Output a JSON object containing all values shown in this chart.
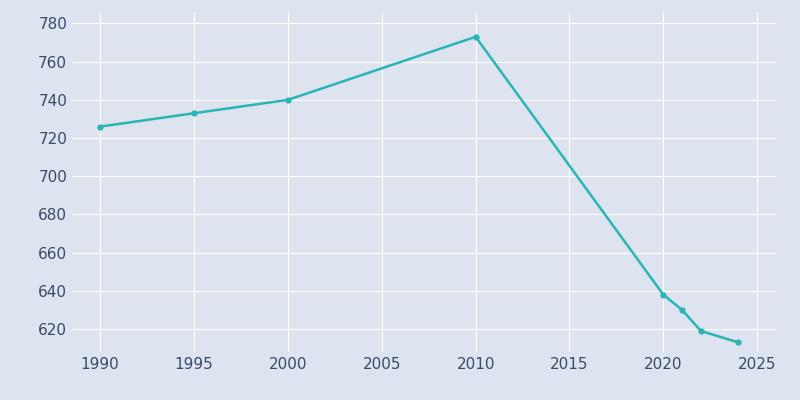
{
  "years": [
    1990,
    1995,
    2000,
    2010,
    2020,
    2021,
    2022,
    2024
  ],
  "population": [
    726,
    733,
    740,
    773,
    638,
    630,
    619,
    613
  ],
  "line_color": "#2ab5b5",
  "marker": "o",
  "marker_size": 3.5,
  "line_width": 1.8,
  "bg_color": "#dde4ef",
  "plot_bg_color": "#dde4ef",
  "grid_color": "#ffffff",
  "tick_color": "#3a4a6b",
  "xlim": [
    1988.5,
    2026
  ],
  "ylim": [
    608,
    786
  ],
  "yticks": [
    620,
    640,
    660,
    680,
    700,
    720,
    740,
    760,
    780
  ],
  "xticks": [
    1990,
    1995,
    2000,
    2005,
    2010,
    2015,
    2020,
    2025
  ]
}
